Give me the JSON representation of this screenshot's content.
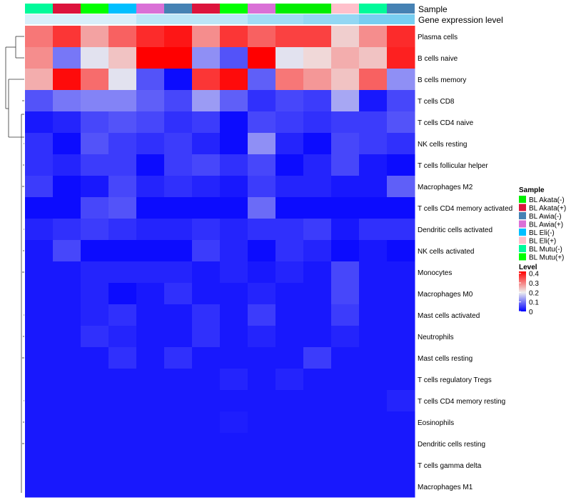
{
  "chart_data": {
    "type": "heatmap",
    "title": "",
    "annotation_labels": [
      "Sample",
      "Gene expression level"
    ],
    "samples": [
      "BL Mutu(-)",
      "BL Akata(+)",
      "BL Mutu(+)",
      "BL Eli(-)",
      "BL Awia(+)",
      "BL Awia(-)",
      "BL Akata(+)",
      "BL Mutu(+)",
      "BL Awia(+)",
      "BL Akata(-)",
      "BL Akata(-)",
      "BL Eli(+)",
      "BL Mutu(-)",
      "BL Awia(-)"
    ],
    "gene_expression_level": [
      0.1,
      0.1,
      0.1,
      0.1,
      0.3,
      0.3,
      0.3,
      0.3,
      0.5,
      0.5,
      0.6,
      0.6,
      0.8,
      0.8
    ],
    "rows": [
      "Plasma cells",
      "B cells naive",
      "B cells memory",
      "T cells CD8",
      "T cells CD4 naive",
      "NK cells resting",
      "T cells follicular helper",
      "Macrophages M2",
      "T cells CD4 memory activated",
      "Dendritic cells activated",
      "NK cells activated",
      "Monocytes",
      "Macrophages M0",
      "Mast cells activated",
      "Neutrophils",
      "Mast cells resting",
      "T cells regulatory  Tregs",
      "T cells CD4 memory resting",
      "Eosinophils",
      "Dendritic cells resting",
      "T cells gamma delta",
      "Macrophages M1"
    ],
    "values": [
      [
        0.31,
        0.37,
        0.27,
        0.33,
        0.38,
        0.4,
        0.29,
        0.37,
        0.33,
        0.36,
        0.36,
        0.23,
        0.29,
        0.38
      ],
      [
        0.29,
        0.1,
        0.19,
        0.24,
        0.42,
        0.42,
        0.12,
        0.07,
        0.42,
        0.19,
        0.22,
        0.26,
        0.24,
        0.39
      ],
      [
        0.26,
        0.41,
        0.32,
        0.19,
        0.07,
        0.01,
        0.37,
        0.41,
        0.08,
        0.31,
        0.28,
        0.24,
        0.33,
        0.12
      ],
      [
        0.07,
        0.1,
        0.11,
        0.11,
        0.08,
        0.06,
        0.13,
        0.08,
        0.04,
        0.06,
        0.05,
        0.14,
        0.02,
        0.06
      ],
      [
        0.02,
        0.03,
        0.06,
        0.07,
        0.06,
        0.04,
        0.05,
        0.01,
        0.06,
        0.05,
        0.04,
        0.05,
        0.05,
        0.07
      ],
      [
        0.04,
        0.01,
        0.07,
        0.05,
        0.04,
        0.05,
        0.03,
        0.01,
        0.12,
        0.03,
        0.01,
        0.06,
        0.05,
        0.04
      ],
      [
        0.04,
        0.03,
        0.05,
        0.05,
        0.01,
        0.05,
        0.06,
        0.04,
        0.06,
        0.01,
        0.03,
        0.06,
        0.02,
        0.01
      ],
      [
        0.05,
        0.01,
        0.02,
        0.06,
        0.03,
        0.04,
        0.03,
        0.02,
        0.05,
        0.03,
        0.03,
        0.02,
        0.02,
        0.08
      ],
      [
        0.01,
        0.01,
        0.06,
        0.07,
        0.01,
        0.01,
        0.01,
        0.01,
        0.09,
        0.01,
        0.01,
        0.01,
        0.01,
        0.01
      ],
      [
        0.03,
        0.04,
        0.05,
        0.04,
        0.03,
        0.03,
        0.04,
        0.03,
        0.04,
        0.04,
        0.05,
        0.02,
        0.04,
        0.04
      ],
      [
        0.02,
        0.06,
        0.01,
        0.01,
        0.01,
        0.01,
        0.05,
        0.03,
        0.01,
        0.04,
        0.03,
        0.01,
        0.02,
        0.01
      ],
      [
        0.02,
        0.02,
        0.03,
        0.03,
        0.03,
        0.03,
        0.02,
        0.03,
        0.02,
        0.03,
        0.02,
        0.06,
        0.02,
        0.02
      ],
      [
        0.02,
        0.02,
        0.03,
        0.01,
        0.02,
        0.04,
        0.02,
        0.02,
        0.03,
        0.02,
        0.02,
        0.06,
        0.02,
        0.02
      ],
      [
        0.02,
        0.02,
        0.03,
        0.04,
        0.02,
        0.02,
        0.04,
        0.02,
        0.05,
        0.02,
        0.02,
        0.05,
        0.02,
        0.02
      ],
      [
        0.02,
        0.02,
        0.04,
        0.03,
        0.02,
        0.02,
        0.04,
        0.02,
        0.03,
        0.02,
        0.02,
        0.03,
        0.02,
        0.02
      ],
      [
        0.02,
        0.02,
        0.02,
        0.04,
        0.02,
        0.04,
        0.02,
        0.02,
        0.02,
        0.02,
        0.05,
        0.02,
        0.02,
        0.02
      ],
      [
        0.02,
        0.02,
        0.02,
        0.02,
        0.02,
        0.02,
        0.02,
        0.03,
        0.02,
        0.03,
        0.02,
        0.02,
        0.02,
        0.02
      ],
      [
        0.02,
        0.02,
        0.02,
        0.02,
        0.02,
        0.02,
        0.02,
        0.02,
        0.02,
        0.02,
        0.02,
        0.02,
        0.02,
        0.03
      ],
      [
        0.02,
        0.02,
        0.02,
        0.02,
        0.02,
        0.02,
        0.02,
        0.025,
        0.02,
        0.02,
        0.02,
        0.02,
        0.02,
        0.02
      ],
      [
        0.02,
        0.02,
        0.02,
        0.02,
        0.02,
        0.02,
        0.02,
        0.02,
        0.02,
        0.02,
        0.02,
        0.02,
        0.02,
        0.02
      ],
      [
        0.02,
        0.02,
        0.02,
        0.02,
        0.02,
        0.02,
        0.02,
        0.02,
        0.02,
        0.02,
        0.02,
        0.02,
        0.02,
        0.02
      ],
      [
        0.02,
        0.02,
        0.02,
        0.02,
        0.02,
        0.02,
        0.02,
        0.02,
        0.02,
        0.02,
        0.02,
        0.02,
        0.02,
        0.02
      ]
    ],
    "legend_sample": {
      "title": "Sample",
      "entries": [
        {
          "label": "BL Akata(-)",
          "color": "#00ee00"
        },
        {
          "label": "BL Akata(+)",
          "color": "#dc143c"
        },
        {
          "label": "BL Awia(-)",
          "color": "#4682b4"
        },
        {
          "label": "BL Awia(+)",
          "color": "#da70d6"
        },
        {
          "label": "BL Eli(-)",
          "color": "#00bfff"
        },
        {
          "label": "BL Eli(+)",
          "color": "#ffc0cb"
        },
        {
          "label": "BL Mutu(-)",
          "color": "#00fa9a"
        },
        {
          "label": "BL Mutu(+)",
          "color": "#00ff00"
        }
      ]
    },
    "legend_level": {
      "title": "Level",
      "ticks": [
        "0.4",
        "0.3",
        "0.2",
        "0.1",
        "0"
      ],
      "range": [
        0,
        0.42
      ]
    },
    "colors": {
      "low": "#0000ff",
      "mid": "#eeeeee",
      "high": "#ff0000",
      "expr_low": "#e6f4fb",
      "expr_high": "#5bc4ee"
    }
  }
}
